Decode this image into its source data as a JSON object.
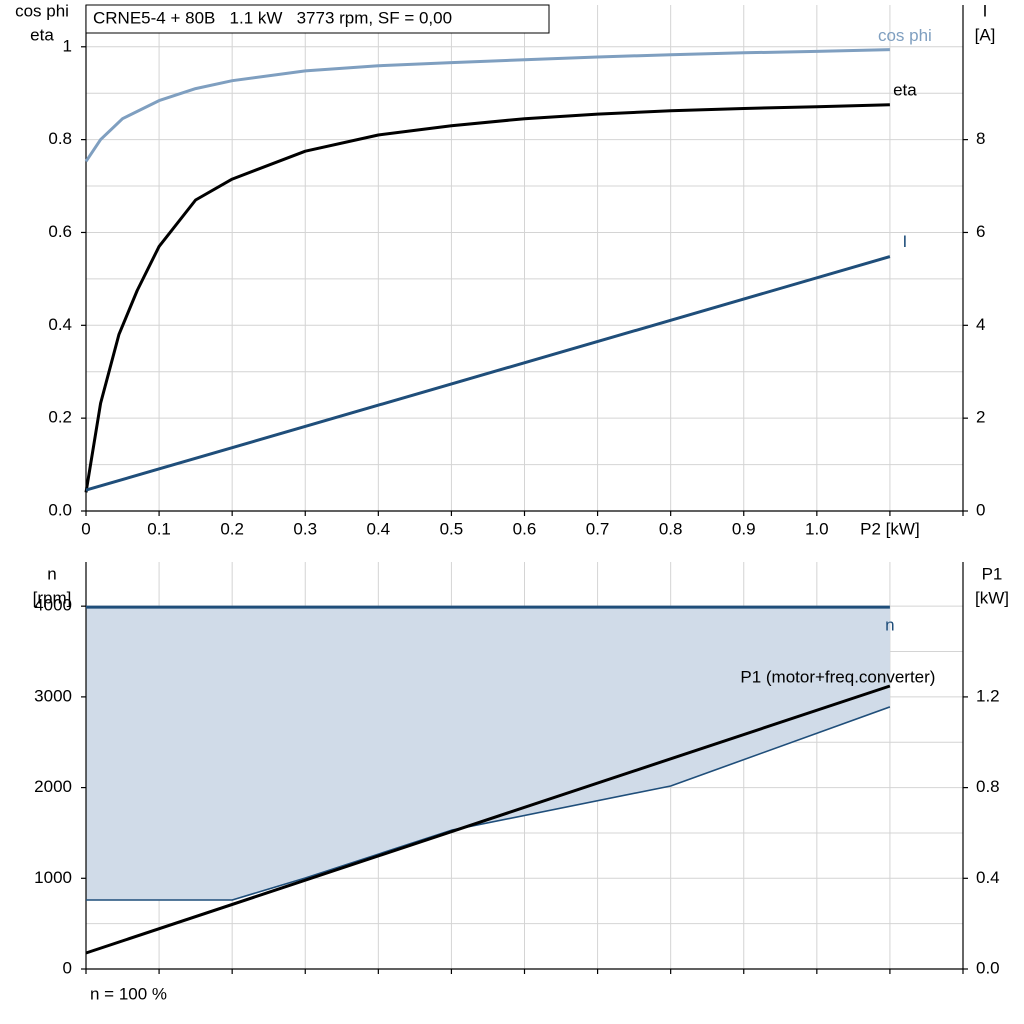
{
  "chart_data": [
    {
      "type": "line",
      "title": "CRNE5-4 + 80B   1.1 kW   3773 rpm, SF = 0,00",
      "ylabel": [
        "cos phi",
        "eta"
      ],
      "y2label": [
        "I",
        "[A]"
      ],
      "xlim": [
        0,
        1.2
      ],
      "xticks": [
        0,
        0.1,
        0.2,
        0.3,
        0.4,
        0.5,
        0.6,
        0.7,
        0.8,
        0.9,
        {
          "value": 1,
          "label": "1.0"
        },
        {
          "value": 1.1,
          "label": "P2 [kW]"
        },
        1.2
      ],
      "xtick_labels": true,
      "ylim": [
        0,
        1.09
      ],
      "yticks": [
        {
          "value": 0,
          "label": "0.0"
        },
        0.2,
        0.4,
        0.6,
        0.8,
        1
      ],
      "y2lim": [
        0,
        10.9
      ],
      "y2ticks": [
        0,
        2,
        4,
        6,
        8
      ],
      "grid": true,
      "series": [
        {
          "name": "cos phi",
          "color": "#7f9fc0",
          "axis": "y",
          "x": [
            0,
            0.02,
            0.05,
            0.1,
            0.15,
            0.2,
            0.3,
            0.4,
            0.5,
            0.6,
            0.7,
            0.8,
            0.9,
            1.0,
            1.1
          ],
          "values": [
            0.753,
            0.8,
            0.845,
            0.884,
            0.91,
            0.927,
            0.948,
            0.959,
            0.966,
            0.972,
            0.978,
            0.983,
            0.987,
            0.99,
            0.994
          ]
        },
        {
          "name": "eta",
          "color": "#000000",
          "axis": "y",
          "x": [
            0,
            0.02,
            0.045,
            0.07,
            0.1,
            0.15,
            0.2,
            0.3,
            0.4,
            0.5,
            0.6,
            0.7,
            0.8,
            0.9,
            1.0,
            1.1
          ],
          "values": [
            0.04,
            0.232,
            0.38,
            0.475,
            0.57,
            0.67,
            0.715,
            0.775,
            0.81,
            0.83,
            0.845,
            0.855,
            0.862,
            0.867,
            0.871,
            0.875
          ]
        },
        {
          "name": "I",
          "color": "#1f4e7a",
          "axis": "y2",
          "x": [
            0,
            1.1
          ],
          "values": [
            0.45,
            5.48
          ]
        }
      ]
    },
    {
      "type": "line",
      "ylabel": [
        "n",
        "[rpm]"
      ],
      "y2label": [
        "P1",
        "[kW]"
      ],
      "note": "n = 100 %",
      "xlim": [
        0,
        1.2
      ],
      "xticks": [
        0,
        0.1,
        0.2,
        0.3,
        0.4,
        0.5,
        0.6,
        0.7,
        0.8,
        0.9,
        1,
        1.1,
        1.2
      ],
      "xtick_labels": false,
      "ylim": [
        0,
        4487
      ],
      "yticks": [
        0,
        1000,
        2000,
        3000,
        4000
      ],
      "y2lim": [
        0,
        1.795
      ],
      "y2ticks": [
        {
          "value": 0,
          "label": "0.0"
        },
        0.4,
        0.8,
        {
          "value": 1.2,
          "label": "1.2"
        }
      ],
      "grid": true,
      "fill_color": "#d0dbe8",
      "series": [
        {
          "name": "n",
          "color": "#1f4e7a",
          "axis": "y",
          "x": [
            0,
            1.1
          ],
          "values": [
            3990,
            3990
          ]
        },
        {
          "color": "#1f4e7a",
          "axis": "y",
          "x": [
            0,
            0.2,
            0.3,
            0.5,
            0.8,
            1.1
          ],
          "values": [
            761,
            761,
            1003,
            1530,
            2018,
            2889
          ]
        },
        {
          "name": "P1 (motor+freq.converter)",
          "color": "#000000",
          "axis": "y2",
          "x": [
            0,
            1.1
          ],
          "values": [
            0.0705,
            1.248
          ]
        }
      ]
    }
  ]
}
